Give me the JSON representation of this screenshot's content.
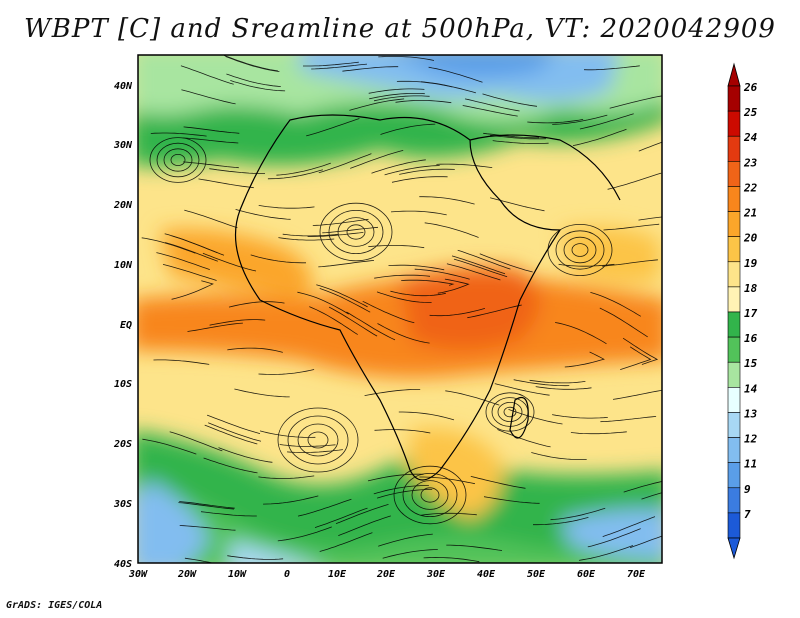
{
  "title": "WBPT [C] and Sreamline at 500hPa, VT: 2020042909",
  "credit": "GrADS: IGES/COLA",
  "map": {
    "lat_labels": [
      "40N",
      "30N",
      "20N",
      "10N",
      "EQ",
      "10S",
      "20S",
      "30S",
      "40S"
    ],
    "lon_labels": [
      "30W",
      "20W",
      "10W",
      "0",
      "10E",
      "20E",
      "30E",
      "40E",
      "50E",
      "60E",
      "70E"
    ]
  },
  "colorbar": {
    "labels": [
      "26",
      "25",
      "24",
      "23",
      "22",
      "21",
      "20",
      "19",
      "18",
      "17",
      "16",
      "15",
      "14",
      "13",
      "12",
      "11",
      "9",
      "7"
    ],
    "colors": [
      "#a50000",
      "#cc0a00",
      "#e33a10",
      "#f06418",
      "#f8861c",
      "#fba62a",
      "#fcc447",
      "#fde48a",
      "#fff3b5",
      "#32b44b",
      "#52c35a",
      "#a8e5a0",
      "#e8ffff",
      "#a8d8f4",
      "#82bdf0",
      "#5a9ee8",
      "#3b7ce0",
      "#1c5ad8"
    ]
  }
}
